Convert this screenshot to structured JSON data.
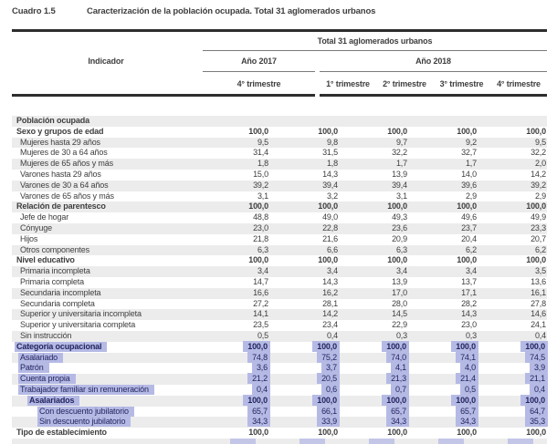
{
  "document": {
    "cuadro_label": "Cuadro 1.5",
    "title": "Caracterización de la población ocupada. Total 31 aglomerados urbanos"
  },
  "table": {
    "group_header": "Total 31 aglomerados urbanos",
    "indicator_header": "Indicador",
    "year_2017_label": "Año 2017",
    "year_2018_label": "Año 2018",
    "quarter_headers": [
      "4° trimestre",
      "1° trimestre",
      "2° trimestre",
      "3° trimestre",
      "4° trimestre"
    ],
    "rows": [
      {
        "label": "Población ocupada",
        "level": 0,
        "bold": true,
        "highlight": false,
        "values": [
          "",
          "",
          "",
          "",
          ""
        ]
      },
      {
        "label": "Sexo y grupos de edad",
        "level": 0,
        "bold": true,
        "highlight": false,
        "values": [
          "100,0",
          "100,0",
          "100,0",
          "100,0",
          "100,0"
        ]
      },
      {
        "label": "Mujeres hasta 29 años",
        "level": 1,
        "bold": false,
        "highlight": false,
        "values": [
          "9,5",
          "9,8",
          "9,7",
          "9,2",
          "9,5"
        ]
      },
      {
        "label": "Mujeres de 30 a 64 años",
        "level": 1,
        "bold": false,
        "highlight": false,
        "values": [
          "31,4",
          "31,5",
          "32,2",
          "32,7",
          "32,2"
        ]
      },
      {
        "label": "Mujeres de 65 años y más",
        "level": 1,
        "bold": false,
        "highlight": false,
        "values": [
          "1,8",
          "1,8",
          "1,7",
          "1,7",
          "2,0"
        ]
      },
      {
        "label": "Varones hasta 29 años",
        "level": 1,
        "bold": false,
        "highlight": false,
        "values": [
          "15,0",
          "14,3",
          "13,9",
          "14,0",
          "14,2"
        ]
      },
      {
        "label": "Varones de 30 a 64 años",
        "level": 1,
        "bold": false,
        "highlight": false,
        "values": [
          "39,2",
          "39,4",
          "39,4",
          "39,6",
          "39,2"
        ]
      },
      {
        "label": "Varones de 65 años y más",
        "level": 1,
        "bold": false,
        "highlight": false,
        "values": [
          "3,1",
          "3,2",
          "3,1",
          "2,9",
          "2,9"
        ]
      },
      {
        "label": "Relación de parentesco",
        "level": 0,
        "bold": true,
        "highlight": false,
        "values": [
          "100,0",
          "100,0",
          "100,0",
          "100,0",
          "100,0"
        ]
      },
      {
        "label": "Jefe de hogar",
        "level": 1,
        "bold": false,
        "highlight": false,
        "values": [
          "48,8",
          "49,0",
          "49,3",
          "49,6",
          "49,9"
        ]
      },
      {
        "label": "Cónyuge",
        "level": 1,
        "bold": false,
        "highlight": false,
        "values": [
          "23,0",
          "22,8",
          "23,6",
          "23,7",
          "23,3"
        ]
      },
      {
        "label": "Hijos",
        "level": 1,
        "bold": false,
        "highlight": false,
        "values": [
          "21,8",
          "21,6",
          "20,9",
          "20,4",
          "20,7"
        ]
      },
      {
        "label": "Otros componentes",
        "level": 1,
        "bold": false,
        "highlight": false,
        "values": [
          "6,3",
          "6,6",
          "6,3",
          "6,2",
          "6,2"
        ]
      },
      {
        "label": "Nivel educativo",
        "level": 0,
        "bold": true,
        "highlight": false,
        "values": [
          "100,0",
          "100,0",
          "100,0",
          "100,0",
          "100,0"
        ]
      },
      {
        "label": "Primaria incompleta",
        "level": 1,
        "bold": false,
        "highlight": false,
        "values": [
          "3,4",
          "3,4",
          "3,4",
          "3,4",
          "3,5"
        ]
      },
      {
        "label": "Primaria completa",
        "level": 1,
        "bold": false,
        "highlight": false,
        "values": [
          "14,7",
          "14,3",
          "13,9",
          "13,7",
          "13,6"
        ]
      },
      {
        "label": "Secundaria incompleta",
        "level": 1,
        "bold": false,
        "highlight": false,
        "values": [
          "16,6",
          "16,2",
          "17,0",
          "17,1",
          "16,1"
        ]
      },
      {
        "label": "Secundaria completa",
        "level": 1,
        "bold": false,
        "highlight": false,
        "values": [
          "27,2",
          "28,1",
          "28,0",
          "28,2",
          "27,8"
        ]
      },
      {
        "label": "Superior y universitaria incompleta",
        "level": 1,
        "bold": false,
        "highlight": false,
        "values": [
          "14,1",
          "14,2",
          "14,5",
          "14,3",
          "14,6"
        ]
      },
      {
        "label": "Superior y universitaria completa",
        "level": 1,
        "bold": false,
        "highlight": false,
        "values": [
          "23,5",
          "23,4",
          "22,9",
          "23,0",
          "24,1"
        ]
      },
      {
        "label": "Sin instrucción",
        "level": 1,
        "bold": false,
        "highlight": false,
        "values": [
          "0,5",
          "0,4",
          "0,3",
          "0,3",
          "0,4"
        ]
      },
      {
        "label": "Categoría ocupacional",
        "level": 0,
        "bold": true,
        "highlight": true,
        "values": [
          "100,0",
          "100,0",
          "100,0",
          "100,0",
          "100,0"
        ]
      },
      {
        "label": "Asalariado",
        "level": 1,
        "bold": false,
        "highlight": true,
        "values": [
          "74,8",
          "75,2",
          "74,0",
          "74,1",
          "74,5"
        ]
      },
      {
        "label": "Patrón",
        "level": 1,
        "bold": false,
        "highlight": true,
        "values": [
          "3,6",
          "3,7",
          "4,1",
          "4,0",
          "3,9"
        ]
      },
      {
        "label": "Cuenta propia",
        "level": 1,
        "bold": false,
        "highlight": true,
        "values": [
          "21,2",
          "20,5",
          "21,3",
          "21,4",
          "21,1"
        ]
      },
      {
        "label": "Trabajador familiar sin remuneración",
        "level": 1,
        "bold": false,
        "highlight": true,
        "values": [
          "0,4",
          "0,6",
          "0,7",
          "0,5",
          "0,4"
        ]
      },
      {
        "label": "Asalariados",
        "level": 2,
        "bold": true,
        "highlight": true,
        "values": [
          "100,0",
          "100,0",
          "100,0",
          "100,0",
          "100,0"
        ]
      },
      {
        "label": "Con descuento jubilatorio",
        "level": 3,
        "bold": false,
        "highlight": true,
        "values": [
          "65,7",
          "66,1",
          "65,7",
          "65,7",
          "64,7"
        ]
      },
      {
        "label": "Sin descuento jubilatorio",
        "level": 3,
        "bold": false,
        "highlight": true,
        "values": [
          "34,3",
          "33,9",
          "34,3",
          "34,3",
          "35,3"
        ]
      },
      {
        "label": "Tipo de establecimiento",
        "level": 0,
        "bold": true,
        "highlight": false,
        "values": [
          "100,0",
          "100,0",
          "100,0",
          "100,0",
          "100,0"
        ]
      }
    ]
  },
  "colors": {
    "text": "#3e3e3e",
    "stripe": "#ececec",
    "selection_highlight": "#b5bae5",
    "selection_text": "#23255f",
    "rule_dark": "#2d2d2d",
    "rule_light": "#7a7a7a"
  }
}
